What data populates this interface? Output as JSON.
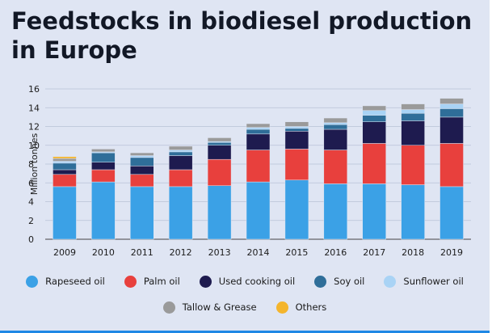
{
  "page": {
    "title": "Feedstocks in biodiesel production in Europe"
  },
  "chart_data": {
    "type": "bar",
    "stacked": true,
    "title": "Feedstocks in biodiesel production in Europe",
    "xlabel": "",
    "ylabel": "Million tonnes",
    "ylim": [
      0,
      16
    ],
    "yticks": [
      0,
      2,
      4,
      6,
      8,
      10,
      12,
      14,
      16
    ],
    "grid": true,
    "legend_position": "bottom",
    "categories": [
      "2009",
      "2010",
      "2011",
      "2012",
      "2013",
      "2014",
      "2015",
      "2016",
      "2017",
      "2018",
      "2019"
    ],
    "series": [
      {
        "name": "Rapeseed oil",
        "color": "#3ba1e6",
        "values": [
          5.6,
          6.1,
          5.6,
          5.6,
          5.7,
          6.1,
          6.3,
          5.9,
          5.9,
          5.8,
          5.6
        ]
      },
      {
        "name": "Palm oil",
        "color": "#e8403d",
        "values": [
          1.3,
          1.3,
          1.3,
          1.8,
          2.8,
          3.4,
          3.3,
          3.6,
          4.3,
          4.2,
          4.6
        ]
      },
      {
        "name": "Used cooking oil",
        "color": "#1e1b4f",
        "values": [
          0.5,
          0.8,
          0.9,
          1.5,
          1.5,
          1.7,
          1.9,
          2.2,
          2.3,
          2.6,
          2.8
        ]
      },
      {
        "name": "Soy oil",
        "color": "#2f6e99",
        "values": [
          0.7,
          1.0,
          0.9,
          0.4,
          0.3,
          0.5,
          0.3,
          0.5,
          0.7,
          0.8,
          0.9
        ]
      },
      {
        "name": "Sunflower oil",
        "color": "#a9d3f5",
        "values": [
          0.2,
          0.1,
          0.2,
          0.2,
          0.1,
          0.2,
          0.2,
          0.2,
          0.5,
          0.4,
          0.5
        ]
      },
      {
        "name": "Tallow & Grease",
        "color": "#9a9a9a",
        "values": [
          0.3,
          0.3,
          0.3,
          0.4,
          0.4,
          0.4,
          0.5,
          0.5,
          0.5,
          0.6,
          0.6
        ]
      },
      {
        "name": "Others",
        "color": "#f4b52d",
        "values": [
          0.2,
          0,
          0,
          0,
          0,
          0,
          0,
          0,
          0,
          0,
          0
        ]
      }
    ]
  }
}
